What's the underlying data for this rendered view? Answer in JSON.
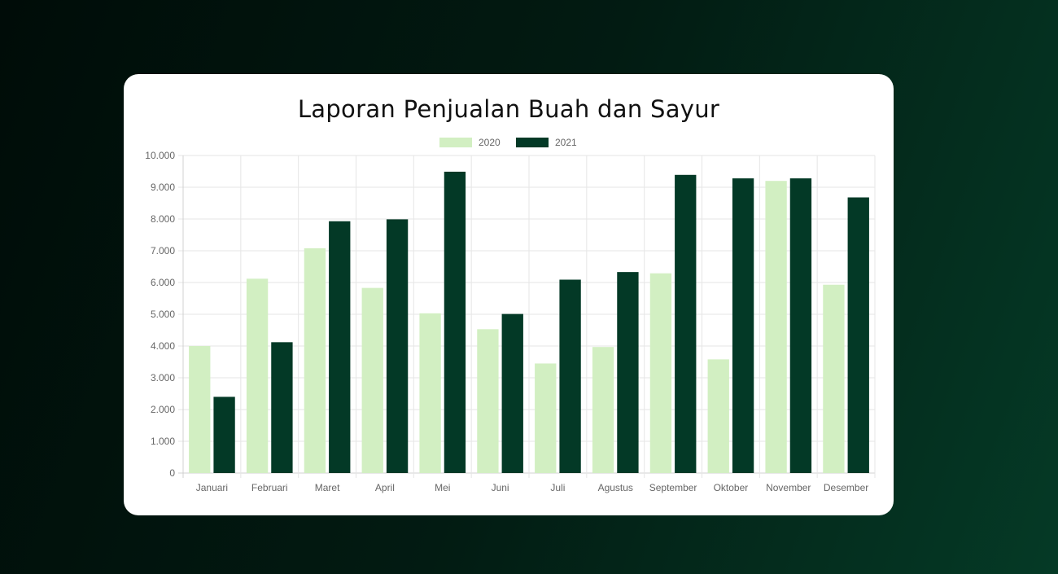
{
  "chart_data": {
    "type": "bar",
    "title": "Laporan Penjualan Buah dan Sayur",
    "categories": [
      "Januari",
      "Februari",
      "Maret",
      "April",
      "Mei",
      "Juni",
      "Juli",
      "Agustus",
      "September",
      "Oktober",
      "November",
      "Desember"
    ],
    "series": [
      {
        "name": "2020",
        "color": "#d2efc2",
        "values": [
          4000,
          6120,
          7080,
          5830,
          5030,
          4530,
          3450,
          3970,
          6290,
          3580,
          9200,
          5930
        ]
      },
      {
        "name": "2021",
        "color": "#033926",
        "values": [
          2400,
          4120,
          7930,
          7990,
          9490,
          5010,
          6090,
          6330,
          9390,
          9280,
          9280,
          8680
        ]
      }
    ],
    "yticks": [
      "0",
      "1.000",
      "2.000",
      "3.000",
      "4.000",
      "5.000",
      "6.000",
      "7.000",
      "8.000",
      "9.000",
      "10.000"
    ],
    "ylim": [
      0,
      10000
    ],
    "grid": true,
    "legend_position": "top"
  }
}
